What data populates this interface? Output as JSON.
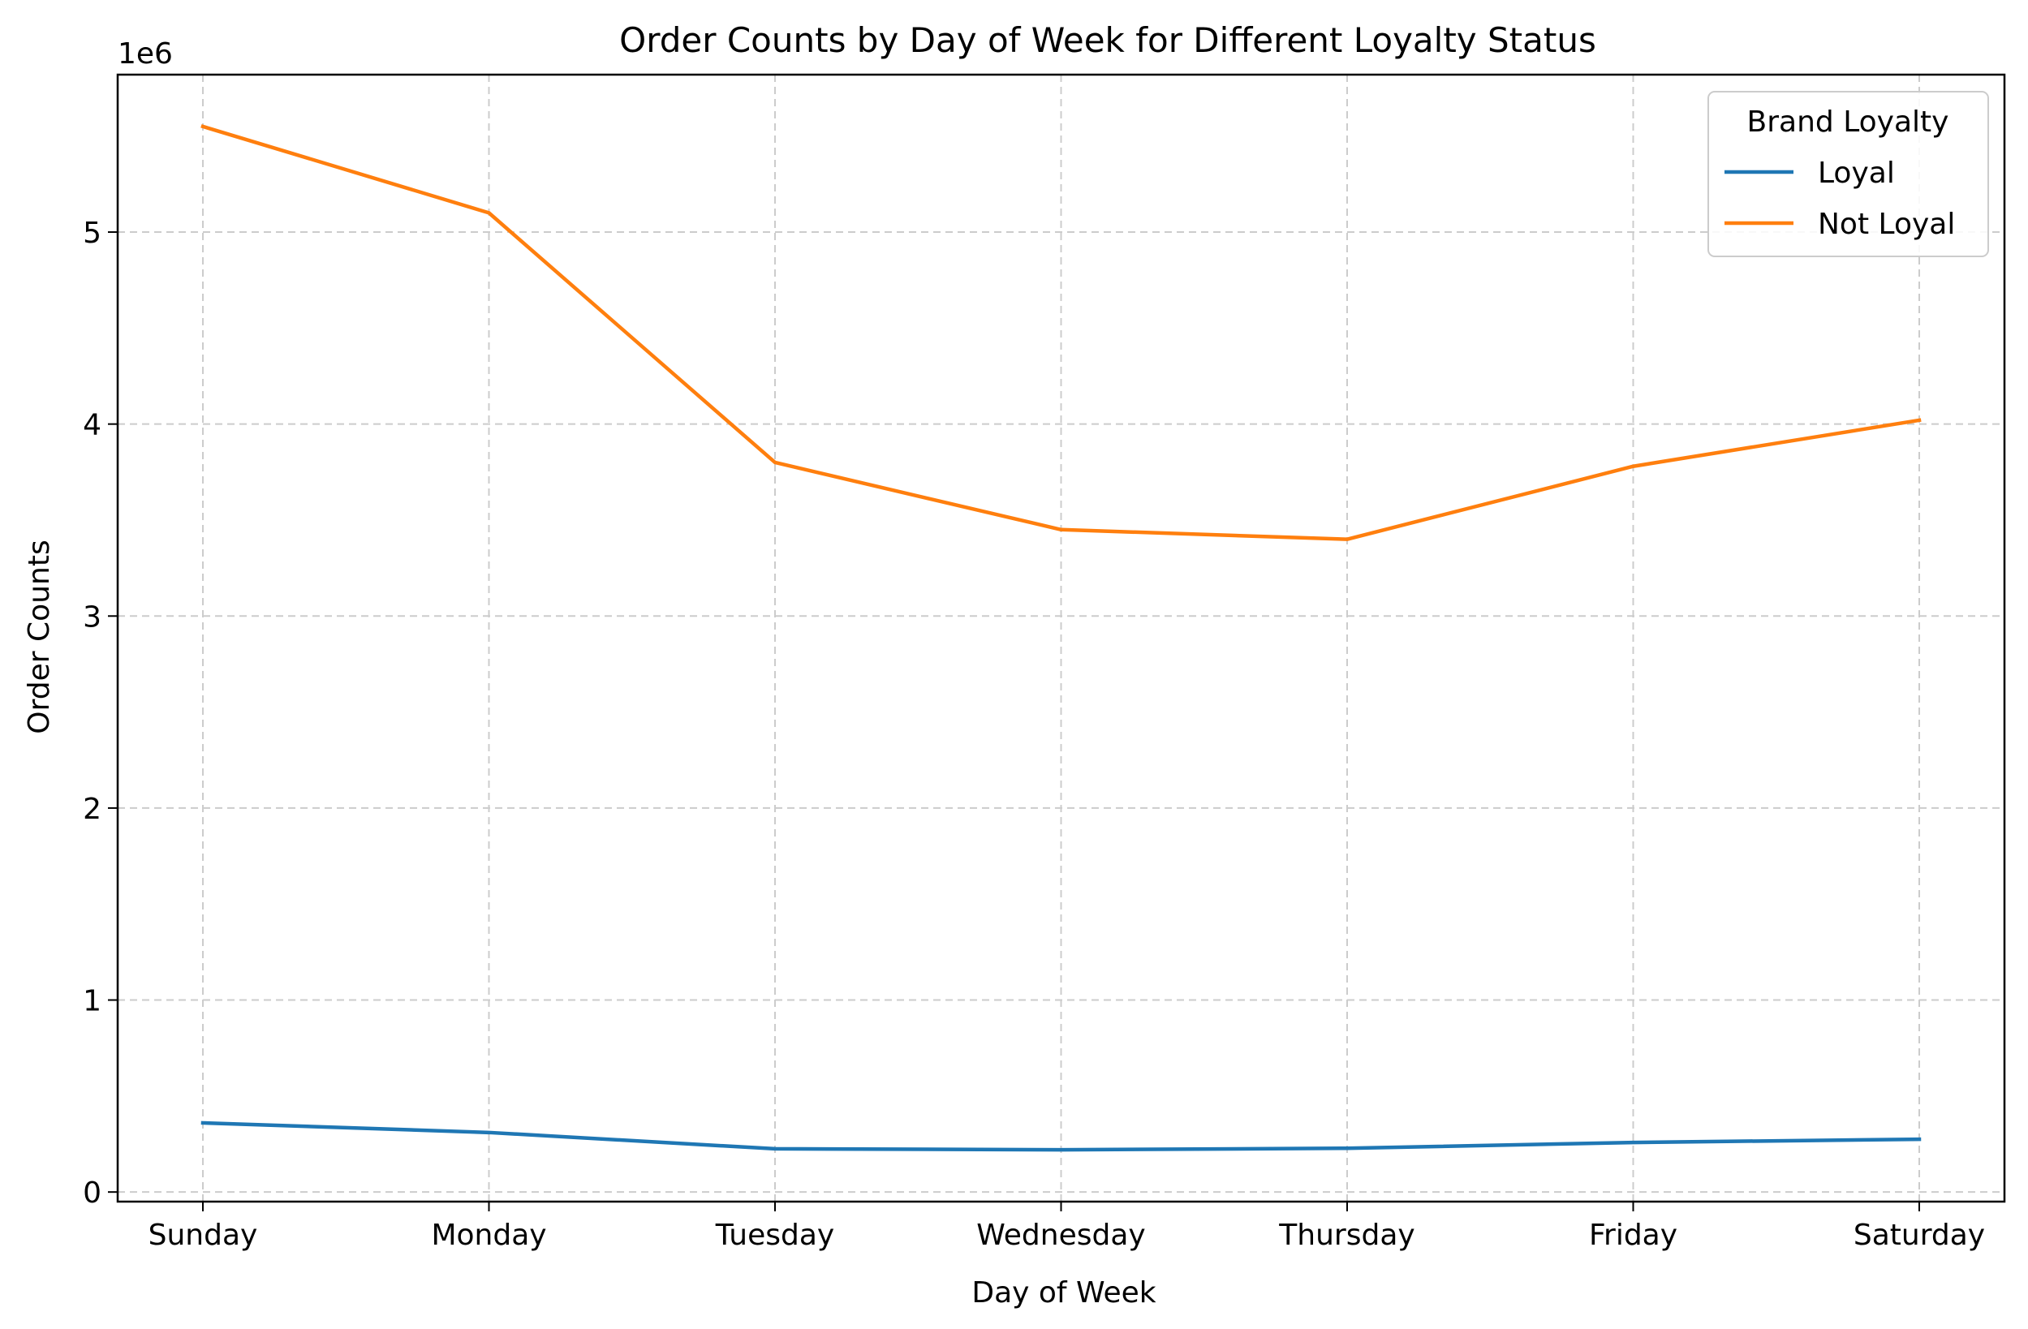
{
  "chart_data": {
    "type": "line",
    "title": "Order Counts by Day of Week for Different Loyalty Status",
    "xlabel": "Day of Week",
    "ylabel": "Order Counts",
    "y_offset_label": "1e6",
    "categories": [
      "Sunday",
      "Monday",
      "Tuesday",
      "Wednesday",
      "Thursday",
      "Friday",
      "Saturday"
    ],
    "yticks": [
      0,
      1,
      2,
      3,
      4,
      5
    ],
    "ylim": [
      -0.05,
      5.82
    ],
    "grid": true,
    "legend": {
      "title": "Brand Loyalty",
      "placement": "top-right"
    },
    "series": [
      {
        "name": "Loyal",
        "color": "#1f77b4",
        "values": [
          0.36,
          0.31,
          0.225,
          0.22,
          0.228,
          0.258,
          0.275
        ]
      },
      {
        "name": "Not Loyal",
        "color": "#ff7f0e",
        "values": [
          5.55,
          5.1,
          3.8,
          3.45,
          3.4,
          3.78,
          4.02
        ]
      }
    ]
  }
}
